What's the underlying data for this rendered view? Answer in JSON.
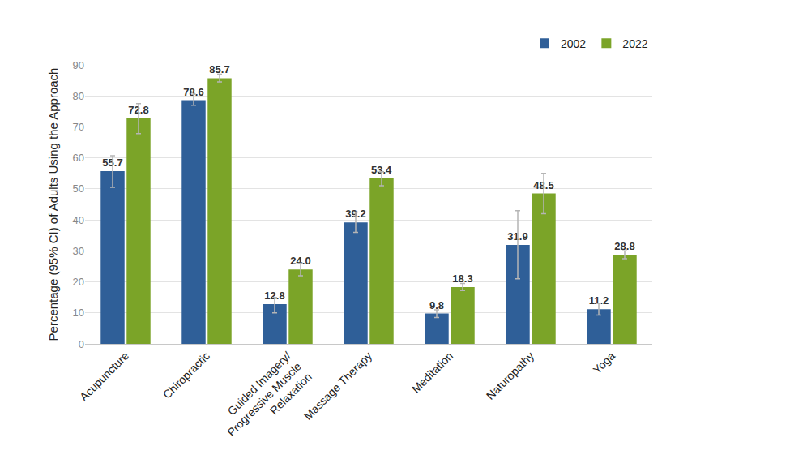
{
  "chart_data": {
    "type": "bar",
    "y_label": "Percentage (95% CI) of Adults Using the Approach",
    "categories": [
      "Acupuncture",
      "Chiropractic",
      "Guided Imagery/ Progressive Muscle Relaxation",
      "Massage Therapy",
      "Meditation",
      "Naturopathy",
      "Yoga"
    ],
    "series": [
      {
        "name": "2002",
        "color": "#2f5f98",
        "values": [
          55.7,
          78.6,
          12.8,
          39.2,
          9.8,
          31.9,
          11.2
        ],
        "value_labels": [
          "55.7",
          "78.6",
          "12.8",
          "39.2",
          "9.8",
          "31.9",
          "11.2"
        ],
        "ci_low": [
          50.5,
          77,
          10,
          36,
          8.5,
          21,
          9.3
        ],
        "ci_high": [
          60.7,
          80.5,
          15,
          42.5,
          11,
          43,
          13
        ]
      },
      {
        "name": "2022",
        "color": "#7ba428",
        "values": [
          72.8,
          85.7,
          24.0,
          53.4,
          18.3,
          48.5,
          28.8
        ],
        "value_labels": [
          "72.8",
          "85.7",
          "24.0",
          "53.4",
          "18.3",
          "48.5",
          "28.8"
        ],
        "ci_low": [
          67.8,
          84.5,
          22,
          51,
          17.2,
          42,
          27.5
        ],
        "ci_high": [
          77.5,
          87,
          26,
          55.5,
          19.5,
          55,
          30
        ]
      }
    ],
    "ylim": [
      0,
      90
    ],
    "yticks": [
      0,
      10,
      20,
      30,
      40,
      50,
      60,
      70,
      80,
      90
    ],
    "grid": true,
    "legend": "top right",
    "data_labels": true
  }
}
